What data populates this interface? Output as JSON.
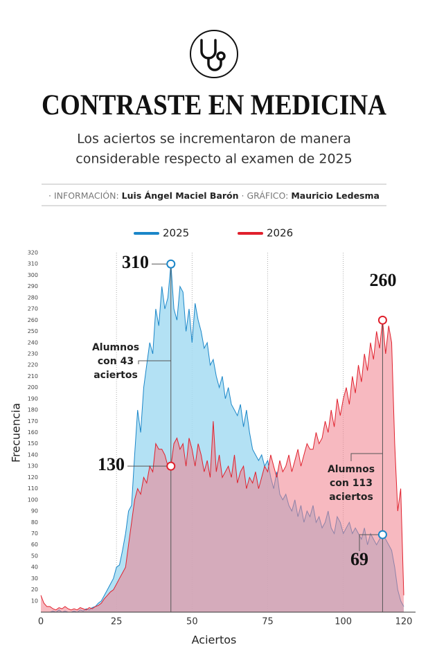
{
  "header": {
    "title": "CONTRASTE EN MEDICINA",
    "subtitle": [
      "Los aciertos se incrementaron de manera",
      "considerable respecto al examen de 2025"
    ],
    "credits": {
      "info_label": "· INFORMACIÓN:",
      "info_name": "Luis Ángel Maciel Barón",
      "graph_label": "· GRÁFICO:",
      "graph_name": "Mauricio Ledesma"
    }
  },
  "chart_data": {
    "type": "area",
    "x_label": "Aciertos",
    "y_label": "Frecuencia",
    "x": [
      0,
      1,
      2,
      3,
      4,
      5,
      6,
      7,
      8,
      9,
      10,
      11,
      12,
      13,
      14,
      15,
      16,
      17,
      18,
      19,
      20,
      21,
      22,
      23,
      24,
      25,
      26,
      27,
      28,
      29,
      30,
      31,
      32,
      33,
      34,
      35,
      36,
      37,
      38,
      39,
      40,
      41,
      42,
      43,
      44,
      45,
      46,
      47,
      48,
      49,
      50,
      51,
      52,
      53,
      54,
      55,
      56,
      57,
      58,
      59,
      60,
      61,
      62,
      63,
      64,
      65,
      66,
      67,
      68,
      69,
      70,
      71,
      72,
      73,
      74,
      75,
      76,
      77,
      78,
      79,
      80,
      81,
      82,
      83,
      84,
      85,
      86,
      87,
      88,
      89,
      90,
      91,
      92,
      93,
      94,
      95,
      96,
      97,
      98,
      99,
      100,
      101,
      102,
      103,
      104,
      105,
      106,
      107,
      108,
      109,
      110,
      111,
      112,
      113,
      114,
      115,
      116,
      117,
      118,
      119,
      120
    ],
    "series": [
      {
        "name": "2025",
        "color": "#1a86c8",
        "fill": "#a6dcf2",
        "values": [
          0,
          0,
          0,
          0,
          1,
          0,
          2,
          0,
          1,
          0,
          0,
          1,
          0,
          2,
          1,
          3,
          2,
          4,
          5,
          8,
          10,
          15,
          20,
          25,
          30,
          40,
          42,
          55,
          70,
          90,
          95,
          140,
          180,
          160,
          200,
          220,
          240,
          230,
          270,
          255,
          290,
          270,
          280,
          310,
          270,
          260,
          290,
          285,
          250,
          270,
          240,
          275,
          260,
          250,
          235,
          240,
          220,
          225,
          210,
          200,
          210,
          190,
          200,
          185,
          180,
          175,
          185,
          165,
          180,
          160,
          145,
          140,
          135,
          140,
          130,
          135,
          120,
          110,
          125,
          105,
          100,
          105,
          95,
          90,
          100,
          85,
          95,
          80,
          90,
          85,
          95,
          80,
          85,
          75,
          80,
          90,
          75,
          70,
          85,
          80,
          70,
          75,
          80,
          70,
          75,
          70,
          65,
          75,
          60,
          70,
          65,
          60,
          65,
          69,
          65,
          60,
          55,
          40,
          20,
          10,
          5
        ]
      },
      {
        "name": "2026",
        "color": "#e0202c",
        "fill": "#f0808c",
        "values": [
          15,
          8,
          5,
          5,
          3,
          2,
          4,
          3,
          5,
          3,
          2,
          3,
          2,
          4,
          3,
          2,
          4,
          3,
          5,
          6,
          8,
          12,
          15,
          18,
          20,
          25,
          30,
          35,
          40,
          60,
          80,
          100,
          110,
          105,
          120,
          115,
          130,
          125,
          150,
          145,
          145,
          140,
          130,
          130,
          150,
          155,
          145,
          150,
          130,
          155,
          145,
          130,
          150,
          140,
          125,
          135,
          120,
          170,
          125,
          140,
          120,
          125,
          130,
          120,
          140,
          115,
          125,
          130,
          110,
          120,
          115,
          125,
          110,
          120,
          130,
          125,
          140,
          130,
          120,
          135,
          125,
          130,
          140,
          125,
          135,
          145,
          130,
          140,
          150,
          145,
          145,
          160,
          150,
          155,
          170,
          160,
          180,
          165,
          190,
          175,
          190,
          200,
          185,
          210,
          195,
          220,
          205,
          230,
          215,
          240,
          225,
          250,
          235,
          260,
          230,
          255,
          240,
          150,
          90,
          110,
          15
        ]
      }
    ],
    "xlim": [
      0,
      120
    ],
    "xticks": [
      0,
      25,
      50,
      75,
      100,
      120
    ],
    "ylim": [
      0,
      320
    ],
    "yticks": [
      10,
      20,
      30,
      40,
      50,
      60,
      70,
      80,
      90,
      100,
      110,
      120,
      130,
      140,
      150,
      160,
      170,
      180,
      190,
      200,
      210,
      220,
      230,
      240,
      250,
      260,
      270,
      280,
      290,
      300,
      310,
      320
    ],
    "grid": true,
    "annotations": [
      {
        "text": "310",
        "series": 0,
        "index": 43
      },
      {
        "text": "130",
        "series": 1,
        "index": 43
      },
      {
        "text": "260",
        "series": 1,
        "index": 113
      },
      {
        "text": "69",
        "series": 0,
        "index": 113
      }
    ],
    "notes": [
      {
        "lines": [
          "Alumnos",
          "con 43",
          "aciertos"
        ],
        "index": 43
      },
      {
        "lines": [
          "Alumnos",
          "con 113",
          "aciertos"
        ],
        "index": 113
      }
    ]
  }
}
